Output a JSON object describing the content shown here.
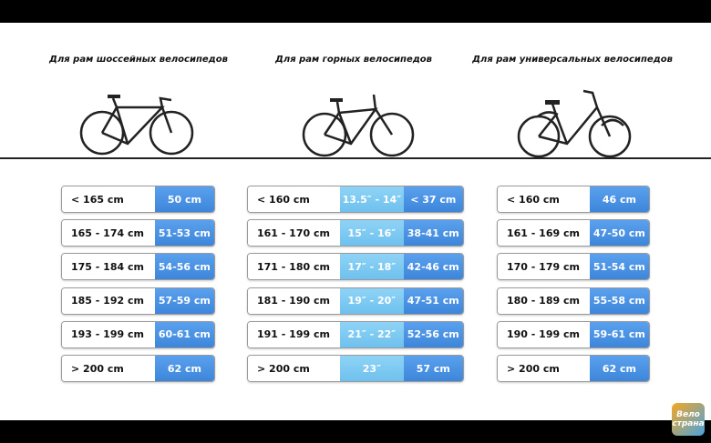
{
  "groups": [
    {
      "title": "Для рам шоссейных велосипедов",
      "rows": [
        [
          "< 165 cm",
          "50 cm"
        ],
        [
          "165 - 174 cm",
          "51-53 cm"
        ],
        [
          "175 - 184 cm",
          "54-56 cm"
        ],
        [
          "185 - 192 cm",
          "57-59 cm"
        ],
        [
          "193 - 199 cm",
          "60-61 cm"
        ],
        [
          "> 200 cm",
          "62 cm"
        ]
      ]
    },
    {
      "title": "Для рам горных велосипедов",
      "rows": [
        [
          "< 160 cm",
          "13.5″ - 14″",
          "< 37 cm"
        ],
        [
          "161 - 170 cm",
          "15″ - 16″",
          "38-41 cm"
        ],
        [
          "171 - 180 cm",
          "17″ - 18″",
          "42-46 cm"
        ],
        [
          "181 - 190 cm",
          "19″ - 20″",
          "47-51 cm"
        ],
        [
          "191 - 199 cm",
          "21″ - 22″",
          "52-56 cm"
        ],
        [
          "> 200 cm",
          "23″",
          "57 cm"
        ]
      ]
    },
    {
      "title": "Для рам универсальных велосипедов",
      "rows": [
        [
          "< 160 cm",
          "46 cm"
        ],
        [
          "161 - 169 cm",
          "47-50 cm"
        ],
        [
          "170 - 179 cm",
          "51-54 cm"
        ],
        [
          "180 - 189 cm",
          "55-58 cm"
        ],
        [
          "190 - 199 cm",
          "59-61 cm"
        ],
        [
          "> 200 cm",
          "62 cm"
        ]
      ]
    }
  ],
  "logo": [
    "Вело",
    "страна"
  ]
}
